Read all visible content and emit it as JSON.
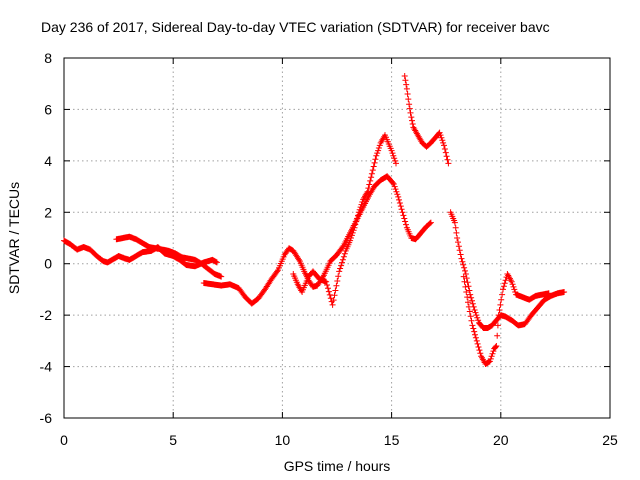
{
  "chart_data": {
    "type": "scatter",
    "title": "Day 236 of 2017, Sidereal Day-to-day VTEC variation (SDTVAR) for receiver bavc",
    "xlabel": "GPS time / hours",
    "ylabel": "SDTVAR / TECUs",
    "xlim": [
      0,
      25
    ],
    "ylim": [
      -6,
      8
    ],
    "xticks": [
      0,
      5,
      10,
      15,
      20,
      25
    ],
    "yticks": [
      -6,
      -4,
      -2,
      0,
      2,
      4,
      6,
      8
    ],
    "grid": true,
    "marker": "+",
    "color": "#ff0000",
    "series": [
      {
        "points": [
          [
            0.0,
            0.9
          ],
          [
            0.3,
            0.75
          ],
          [
            0.6,
            0.55
          ],
          [
            0.9,
            0.65
          ],
          [
            1.2,
            0.55
          ],
          [
            1.5,
            0.3
          ],
          [
            1.8,
            0.1
          ],
          [
            2.0,
            0.05
          ],
          [
            2.2,
            0.15
          ],
          [
            2.5,
            0.3
          ],
          [
            2.8,
            0.2
          ],
          [
            3.0,
            0.15
          ],
          [
            3.3,
            0.3
          ],
          [
            3.6,
            0.45
          ],
          [
            4.0,
            0.5
          ],
          [
            4.3,
            0.65
          ],
          [
            4.6,
            0.4
          ],
          [
            5.0,
            0.3
          ],
          [
            5.3,
            0.15
          ],
          [
            5.6,
            -0.05
          ],
          [
            6.0,
            -0.1
          ],
          [
            6.4,
            0.05
          ],
          [
            6.8,
            0.15
          ],
          [
            7.0,
            0.05
          ]
        ]
      },
      {
        "points": [
          [
            2.4,
            0.95
          ],
          [
            2.7,
            1.0
          ],
          [
            3.0,
            1.05
          ],
          [
            3.3,
            0.95
          ],
          [
            3.6,
            0.8
          ],
          [
            3.9,
            0.65
          ],
          [
            4.2,
            0.6
          ],
          [
            4.5,
            0.55
          ],
          [
            4.8,
            0.5
          ],
          [
            5.1,
            0.4
          ],
          [
            5.4,
            0.25
          ],
          [
            5.7,
            0.2
          ],
          [
            6.0,
            0.15
          ],
          [
            6.3,
            0.0
          ],
          [
            6.6,
            -0.2
          ],
          [
            6.9,
            -0.4
          ],
          [
            7.2,
            -0.5
          ]
        ]
      },
      {
        "points": [
          [
            6.4,
            -0.75
          ],
          [
            6.8,
            -0.8
          ],
          [
            7.2,
            -0.85
          ],
          [
            7.6,
            -0.8
          ],
          [
            8.0,
            -0.95
          ],
          [
            8.3,
            -1.3
          ],
          [
            8.6,
            -1.55
          ],
          [
            8.9,
            -1.35
          ],
          [
            9.2,
            -1.0
          ],
          [
            9.5,
            -0.6
          ],
          [
            9.8,
            -0.25
          ],
          [
            10.1,
            0.35
          ],
          [
            10.3,
            0.6
          ],
          [
            10.5,
            0.5
          ],
          [
            10.8,
            0.1
          ],
          [
            11.0,
            -0.3
          ],
          [
            11.2,
            -0.65
          ],
          [
            11.4,
            -0.9
          ],
          [
            11.6,
            -0.85
          ],
          [
            11.9,
            -0.45
          ],
          [
            12.2,
            0.1
          ],
          [
            12.5,
            0.35
          ],
          [
            12.8,
            0.7
          ],
          [
            13.1,
            1.2
          ],
          [
            13.4,
            1.7
          ],
          [
            13.7,
            2.2
          ],
          [
            14.0,
            2.7
          ],
          [
            14.2,
            3.0
          ],
          [
            14.5,
            3.25
          ],
          [
            14.8,
            3.4
          ],
          [
            15.1,
            3.1
          ],
          [
            15.3,
            2.6
          ],
          [
            15.5,
            2.0
          ],
          [
            15.7,
            1.4
          ],
          [
            15.9,
            1.0
          ],
          [
            16.1,
            0.95
          ],
          [
            16.3,
            1.15
          ],
          [
            16.6,
            1.45
          ],
          [
            16.8,
            1.6
          ]
        ]
      },
      {
        "points": [
          [
            10.5,
            -0.4
          ],
          [
            10.7,
            -0.8
          ],
          [
            10.9,
            -1.1
          ],
          [
            11.2,
            -0.5
          ],
          [
            11.4,
            -0.3
          ],
          [
            11.7,
            -0.6
          ],
          [
            12.0,
            -0.7
          ],
          [
            12.3,
            -1.6
          ],
          [
            12.6,
            -0.3
          ],
          [
            12.9,
            0.5
          ],
          [
            13.1,
            0.9
          ],
          [
            13.3,
            1.4
          ],
          [
            13.5,
            2.0
          ],
          [
            13.7,
            2.5
          ],
          [
            13.9,
            2.8
          ],
          [
            14.1,
            3.5
          ],
          [
            14.3,
            4.2
          ],
          [
            14.5,
            4.7
          ],
          [
            14.7,
            5.0
          ],
          [
            15.0,
            4.4
          ],
          [
            15.2,
            3.9
          ]
        ]
      },
      {
        "points": [
          [
            15.6,
            7.3
          ],
          [
            15.7,
            6.8
          ],
          [
            15.8,
            6.2
          ],
          [
            15.9,
            5.7
          ],
          [
            16.0,
            5.3
          ],
          [
            16.2,
            5.0
          ],
          [
            16.4,
            4.7
          ],
          [
            16.6,
            4.55
          ],
          [
            16.8,
            4.7
          ],
          [
            17.0,
            4.9
          ],
          [
            17.2,
            5.1
          ],
          [
            17.4,
            4.6
          ],
          [
            17.6,
            3.9
          ]
        ]
      },
      {
        "points": [
          [
            17.7,
            2.0
          ],
          [
            17.9,
            1.6
          ],
          [
            18.0,
            1.0
          ],
          [
            18.2,
            0.2
          ],
          [
            18.4,
            -0.4
          ],
          [
            18.6,
            -1.2
          ],
          [
            18.8,
            -1.8
          ],
          [
            19.0,
            -2.3
          ],
          [
            19.2,
            -2.5
          ],
          [
            19.4,
            -2.5
          ],
          [
            19.6,
            -2.4
          ],
          [
            19.8,
            -2.2
          ],
          [
            20.0,
            -2.0
          ],
          [
            20.2,
            -2.05
          ],
          [
            20.5,
            -2.2
          ],
          [
            20.8,
            -2.4
          ],
          [
            21.1,
            -2.35
          ],
          [
            21.4,
            -2.0
          ],
          [
            21.7,
            -1.7
          ],
          [
            22.0,
            -1.4
          ],
          [
            22.3,
            -1.25
          ],
          [
            22.6,
            -1.15
          ],
          [
            22.9,
            -1.1
          ]
        ]
      },
      {
        "points": [
          [
            18.3,
            -0.5
          ],
          [
            18.5,
            -1.5
          ],
          [
            18.7,
            -2.4
          ],
          [
            18.9,
            -3.0
          ],
          [
            19.1,
            -3.6
          ],
          [
            19.3,
            -3.9
          ],
          [
            19.5,
            -3.8
          ],
          [
            19.7,
            -3.3
          ],
          [
            19.8,
            -3.2
          ],
          [
            19.9,
            -2.0
          ],
          [
            20.1,
            -1.0
          ],
          [
            20.3,
            -0.4
          ],
          [
            20.5,
            -0.7
          ],
          [
            20.7,
            -1.2
          ],
          [
            21.0,
            -1.3
          ],
          [
            21.3,
            -1.4
          ],
          [
            21.6,
            -1.25
          ],
          [
            21.9,
            -1.2
          ],
          [
            22.2,
            -1.15
          ]
        ]
      }
    ]
  }
}
